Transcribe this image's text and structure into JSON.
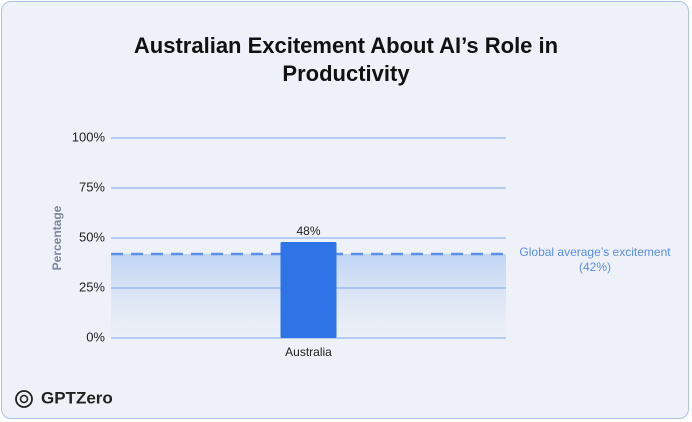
{
  "chart_data": {
    "type": "bar",
    "title": "Australian Excitement About AI’s Role in Productivity",
    "y_label": "Percentage",
    "categories": [
      "Australia"
    ],
    "values": [
      48
    ],
    "value_labels": [
      "48%"
    ],
    "color": "#2f74e6",
    "ylim": [
      0,
      100
    ],
    "yticks": [
      {
        "value": 0,
        "label": "0%"
      },
      {
        "value": 25,
        "label": "25%"
      },
      {
        "value": 50,
        "label": "50%"
      },
      {
        "value": 75,
        "label": "75%"
      },
      {
        "value": 100,
        "label": "100%"
      }
    ],
    "grid": true,
    "reference_line": {
      "value": 42,
      "label": "Global average’s excitement",
      "value_label": "(42%)",
      "color": "#5b8fe8"
    },
    "brand": "GPTZero"
  }
}
